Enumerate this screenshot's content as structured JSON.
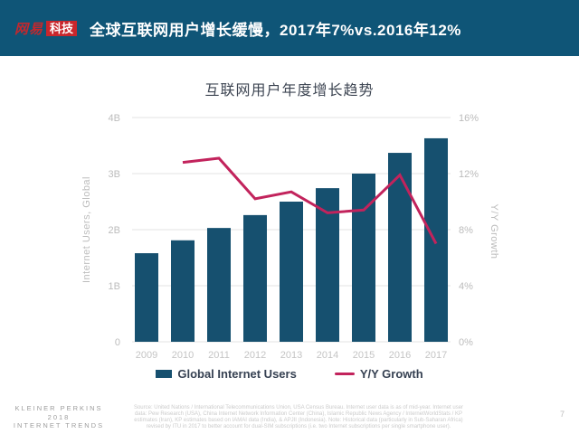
{
  "header": {
    "logo_netease": "网易",
    "logo_tech": "科技",
    "title": "全球互联网用户增长缓慢，2017年7%vs.2016年12%",
    "bg_color": "#0F5577",
    "logo_red": "#C9262C",
    "logo_text_red": "#C4282D"
  },
  "chart_data": {
    "type": "bar+line",
    "title": "互联网用户年度增长趋势",
    "categories": [
      "2009",
      "2010",
      "2011",
      "2012",
      "2013",
      "2014",
      "2015",
      "2016",
      "2017"
    ],
    "series": [
      {
        "name": "Global Internet Users",
        "type": "bar",
        "axis": "left",
        "unit": "B",
        "color": "#16506F",
        "values": [
          1.58,
          1.81,
          2.03,
          2.26,
          2.5,
          2.74,
          3.0,
          3.37,
          3.63
        ]
      },
      {
        "name": "Y/Y Growth",
        "type": "line",
        "axis": "right",
        "unit": "%",
        "color": "#C2235C",
        "values": [
          null,
          12.8,
          13.1,
          10.2,
          10.7,
          9.2,
          9.4,
          11.9,
          7.0
        ]
      }
    ],
    "left_axis": {
      "label": "Internet Users, Global",
      "min": 0,
      "max": 4,
      "ticks": [
        "4B",
        "3B",
        "2B",
        "1B",
        "0"
      ]
    },
    "right_axis": {
      "label": "Y/Y Growth",
      "min": 0,
      "max": 16,
      "ticks": [
        "16%",
        "12%",
        "8%",
        "4%",
        "0%"
      ]
    },
    "grid": true,
    "legend_position": "bottom",
    "colors": {
      "grid": "#E3E3E3",
      "tick_text": "#BCBCBC",
      "x_tick_text": "#C4C4C4"
    }
  },
  "footer": {
    "brand_lines": [
      "KLEINER PERKINS",
      "2018",
      "INTERNET TRENDS"
    ],
    "source_lines": [
      "Source: United Nations / International Telecommunications Union, USA Census Bureau. Internet user data is as of mid-year. Internet user",
      "data: Pew Research (USA), China Internet Network Information Center (China), Islamic Republic News Agency / InternetWorldStats / KP",
      "estimates (Iran), KP estimates based on IAMAI data (India), & APJII (Indonesia). Note: Historical data (particularly in Sub-Saharan Africa)",
      "revised by ITU in 2017 to better account for dual-SIM subscriptions (i.e. two Internet subscriptions per single smartphone user)."
    ],
    "page_number": "7"
  }
}
